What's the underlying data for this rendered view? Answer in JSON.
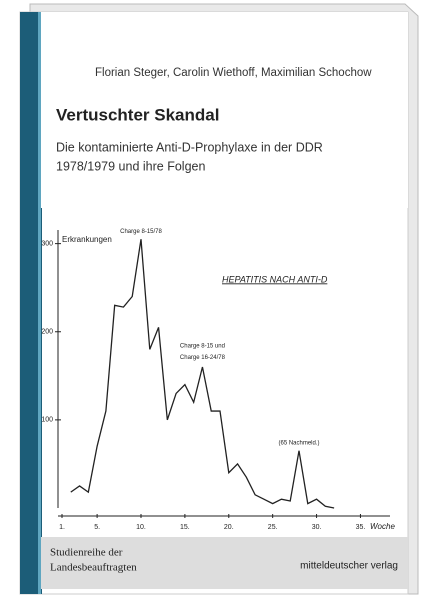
{
  "cover": {
    "authors": "Florian Steger, Carolin Wiethoff, Maximilian Schochow",
    "title": "Vertuschter Skandal",
    "subtitle_line1": "Die kontaminierte Anti-D-Prophylaxe in der DDR",
    "subtitle_line2": "1978/1979 und ihre Folgen",
    "series_line1": "Studienreihe der",
    "series_line2": "Landesbeauftragten",
    "publisher": "mitteldeutscher verlag"
  },
  "chart_data": {
    "type": "line",
    "title": "HEPATITIS NACH ANTI-D",
    "y_label": "Erkrankungen",
    "x_label": "Woche",
    "annotations": [
      {
        "text": "Charge 8-15/78",
        "x": 10,
        "y": 305
      },
      {
        "text": "Charge 8-15 und",
        "x": 17,
        "y": 175
      },
      {
        "text": "Charge 16-24/78",
        "x": 17,
        "y": 162
      },
      {
        "text": "(65 Nachmeld.)",
        "x": 28,
        "y": 65
      }
    ],
    "x": [
      2,
      3,
      4,
      5,
      6,
      7,
      8,
      9,
      10,
      11,
      12,
      13,
      14,
      15,
      16,
      17,
      18,
      19,
      20,
      21,
      22,
      23,
      24,
      25,
      26,
      27,
      28,
      29,
      30,
      31,
      32
    ],
    "series": [
      {
        "name": "Erkrankungen",
        "color": "#222222",
        "values": [
          18,
          25,
          18,
          70,
          110,
          230,
          228,
          240,
          305,
          180,
          205,
          100,
          130,
          140,
          120,
          160,
          110,
          110,
          40,
          50,
          35,
          15,
          10,
          5,
          10,
          8,
          65,
          5,
          10,
          2,
          0
        ]
      }
    ],
    "xlim": [
      1,
      37
    ],
    "ylim": [
      0,
      320
    ],
    "xticks": [
      {
        "value": 1,
        "label": "1."
      },
      {
        "value": 5,
        "label": "5."
      },
      {
        "value": 10,
        "label": "10."
      },
      {
        "value": 15,
        "label": "15."
      },
      {
        "value": 20,
        "label": "20."
      },
      {
        "value": 25,
        "label": "25."
      },
      {
        "value": 30,
        "label": "30."
      },
      {
        "value": 35,
        "label": "35."
      }
    ],
    "yticks": [
      100,
      200,
      300
    ]
  }
}
